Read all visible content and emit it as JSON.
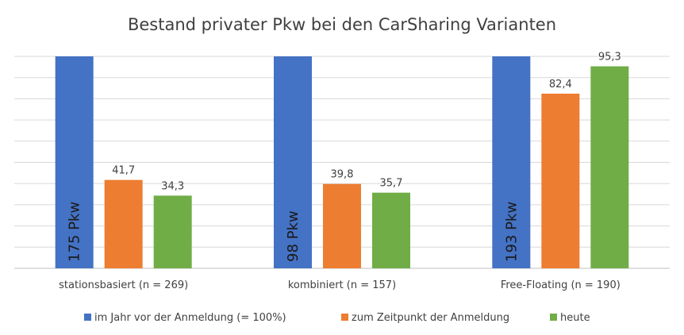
{
  "chart_data": {
    "type": "bar",
    "title": "Bestand privater Pkw bei den CarSharing Varianten",
    "categories": [
      "stationsbasiert (n = 269)",
      "kombiniert (n = 157)",
      "Free-Floating (n = 190)"
    ],
    "series": [
      {
        "name": "im Jahr vor der Anmeldung (= 100%)",
        "color": "#4472C4",
        "values": [
          100,
          100,
          100
        ],
        "bar_labels": [
          "175 Pkw",
          "98 Pkw",
          "193 Pkw"
        ]
      },
      {
        "name": "zum Zeitpunkt der Anmeldung",
        "color": "#ED7D31",
        "values": [
          41.7,
          39.8,
          82.4
        ],
        "data_labels": [
          "41,7",
          "39,8",
          "82,4"
        ]
      },
      {
        "name": "heute",
        "color": "#70AD47",
        "values": [
          34.3,
          35.7,
          95.3
        ],
        "data_labels": [
          "34,3",
          "35,7",
          "95,3"
        ]
      }
    ],
    "ylim": [
      0,
      100
    ],
    "grid": true,
    "legend_position": "bottom"
  }
}
